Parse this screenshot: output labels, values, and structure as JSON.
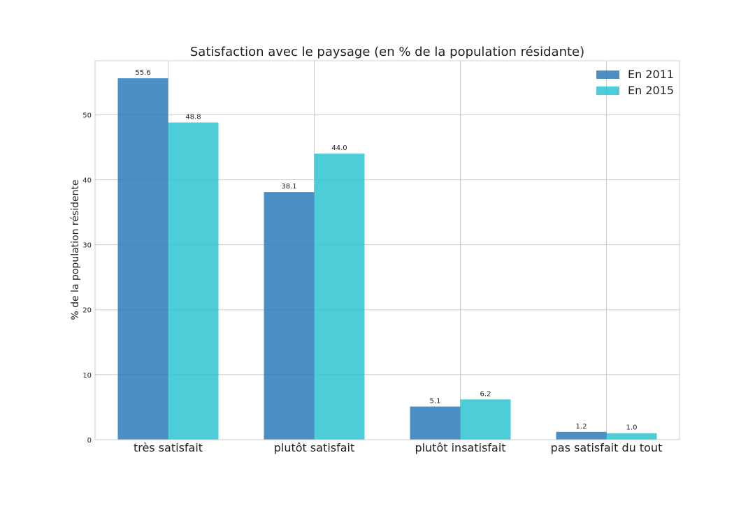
{
  "chart_data": {
    "type": "bar",
    "title": "Satisfaction avec le paysage (en % de la population résidante)",
    "xlabel": "",
    "ylabel": "% de la population résidente",
    "categories": [
      "très satisfait",
      "plutôt satisfait",
      "plutôt insatisfait",
      "pas satisfait du tout"
    ],
    "series": [
      {
        "name": "En 2011",
        "values": [
          55.6,
          38.1,
          5.1,
          1.2
        ],
        "color": "#2b7bba"
      },
      {
        "name": "En 2015",
        "values": [
          48.8,
          44.0,
          6.2,
          1.0
        ],
        "color": "#2ec4d1"
      }
    ],
    "data_labels": [
      [
        "55.6",
        "38.1",
        "5.1",
        "1.2"
      ],
      [
        "48.8",
        "44.0",
        "6.2",
        "1.0"
      ]
    ],
    "ylim": [
      0,
      58.3
    ],
    "yticks": [
      0,
      10,
      20,
      30,
      40,
      50
    ],
    "ytick_labels": [
      "0",
      "10",
      "20",
      "30",
      "40",
      "50"
    ],
    "grid": true,
    "legend_position": "top-right"
  }
}
